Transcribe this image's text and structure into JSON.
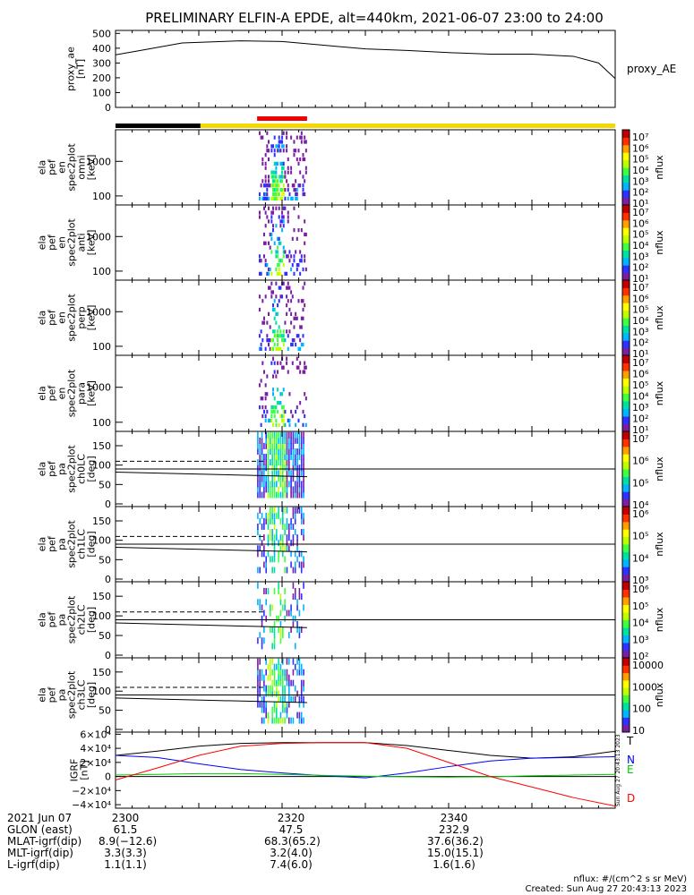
{
  "title": "PRELIMINARY ELFIN-A EPDE, alt=440km, 2021-06-07 23:00 to 24:00",
  "chart_data": [
    {
      "type": "line",
      "panel": "ae",
      "ylabel_lines": [
        "proxy_ae",
        "[nT]"
      ],
      "yticks": [
        "500",
        "400",
        "300",
        "200",
        "100",
        "0"
      ],
      "ytick_values": [
        500,
        400,
        300,
        200,
        100,
        0
      ],
      "ylim": [
        0,
        520
      ],
      "series": [
        {
          "name": "proxy_AE",
          "x": [
            0,
            3,
            8,
            15,
            20,
            25,
            30,
            35,
            40,
            45,
            50,
            55,
            58,
            60
          ],
          "values": [
            355,
            385,
            435,
            450,
            445,
            420,
            395,
            385,
            370,
            360,
            360,
            345,
            300,
            195
          ]
        }
      ]
    },
    {
      "type": "heatmap",
      "panel": "en_omni",
      "ylabel_lines": [
        "ela",
        "pef",
        "en",
        "spec2plot",
        "omni",
        "[keV]"
      ],
      "yticks": [
        "1000",
        "100"
      ],
      "colorbar_label": "nflux",
      "colorbar_ticks": [
        "10⁷",
        "10⁶",
        "10⁵",
        "10⁴",
        "10³",
        "10²",
        "10¹"
      ]
    },
    {
      "type": "heatmap",
      "panel": "en_anti",
      "ylabel_lines": [
        "ela",
        "pef",
        "en",
        "spec2plot",
        "anti",
        "[keV]"
      ],
      "yticks": [
        "1000",
        "100"
      ],
      "colorbar_label": "nflux",
      "colorbar_ticks": [
        "10⁷",
        "10⁶",
        "10⁵",
        "10⁴",
        "10³",
        "10²",
        "10¹"
      ]
    },
    {
      "type": "heatmap",
      "panel": "en_perp",
      "ylabel_lines": [
        "ela",
        "pef",
        "en",
        "spec2plot",
        "perp",
        "[keV]"
      ],
      "yticks": [
        "1000",
        "100"
      ],
      "colorbar_label": "nflux",
      "colorbar_ticks": [
        "10⁷",
        "10⁶",
        "10⁵",
        "10⁴",
        "10³",
        "10²",
        "10¹"
      ]
    },
    {
      "type": "heatmap",
      "panel": "en_para",
      "ylabel_lines": [
        "ela",
        "pef",
        "en",
        "spec2plot",
        "para",
        "[keV]"
      ],
      "yticks": [
        "1000",
        "100"
      ],
      "colorbar_label": "nflux",
      "colorbar_ticks": [
        "10⁷",
        "10⁶",
        "10⁵",
        "10⁴",
        "10³",
        "10²",
        "10¹"
      ]
    },
    {
      "type": "heatmap",
      "panel": "pa_ch0",
      "ylabel_lines": [
        "ela",
        "pef",
        "pa",
        "spec2plot",
        "ch0LC",
        "[deg]"
      ],
      "yticks": [
        "150",
        "100",
        "50",
        "0"
      ],
      "colorbar_label": "nflux",
      "colorbar_ticks": [
        "10⁷",
        "10⁶",
        "10⁵",
        "10⁴"
      ]
    },
    {
      "type": "heatmap",
      "panel": "pa_ch1",
      "ylabel_lines": [
        "ela",
        "pef",
        "pa",
        "spec2plot",
        "ch1LC",
        "[deg]"
      ],
      "yticks": [
        "150",
        "100",
        "50",
        "0"
      ],
      "colorbar_label": "nflux",
      "colorbar_ticks": [
        "10⁶",
        "10⁵",
        "10⁴",
        "10³"
      ]
    },
    {
      "type": "heatmap",
      "panel": "pa_ch2",
      "ylabel_lines": [
        "ela",
        "pef",
        "pa",
        "spec2plot",
        "ch2LC",
        "[deg]"
      ],
      "yticks": [
        "150",
        "100",
        "50",
        "0"
      ],
      "colorbar_label": "nflux",
      "colorbar_ticks": [
        "10⁶",
        "10⁵",
        "10⁴",
        "10³",
        "10²"
      ]
    },
    {
      "type": "heatmap",
      "panel": "pa_ch3",
      "ylabel_lines": [
        "ela",
        "pef",
        "pa",
        "spec2plot",
        "ch3LC",
        "[deg]"
      ],
      "yticks": [
        "150",
        "100",
        "50",
        "0"
      ],
      "colorbar_label": "nflux",
      "colorbar_ticks": [
        "10000",
        "1000",
        "100",
        "10"
      ]
    },
    {
      "type": "line",
      "panel": "igrf",
      "ylabel_lines": [
        "IGRF",
        "[nT]"
      ],
      "yticks": [
        "6×10⁴",
        "4×10⁴",
        "2×10⁴",
        "0",
        "−2×10⁴",
        "−4×10⁴"
      ],
      "ytick_values": [
        60000,
        40000,
        20000,
        0,
        -20000,
        -40000
      ],
      "ylim": [
        -45000,
        63000
      ],
      "series": [
        {
          "name": "T",
          "color": "#000000",
          "x": [
            0,
            5,
            10,
            15,
            20,
            25,
            30,
            35,
            40,
            45,
            50,
            55,
            60
          ],
          "values": [
            30000,
            36000,
            43000,
            47000,
            48000,
            48000,
            48000,
            44000,
            37000,
            30000,
            26000,
            28000,
            36000
          ]
        },
        {
          "name": "N",
          "color": "#0000ff",
          "x": [
            0,
            5,
            10,
            15,
            20,
            25,
            30,
            35,
            40,
            45,
            50,
            55,
            60
          ],
          "values": [
            30000,
            27000,
            18000,
            10000,
            5000,
            1000,
            -2000,
            5000,
            14000,
            22000,
            26000,
            27000,
            28000
          ]
        },
        {
          "name": "E",
          "color": "#00cc00",
          "x": [
            0,
            5,
            10,
            15,
            20,
            25,
            30,
            35,
            40,
            45,
            50,
            55,
            60
          ],
          "values": [
            2000,
            3000,
            4000,
            4000,
            3000,
            1500,
            500,
            -500,
            -1000,
            -500,
            1000,
            2000,
            3000
          ]
        },
        {
          "name": "D",
          "color": "#ff0000",
          "x": [
            0,
            5,
            10,
            15,
            20,
            25,
            30,
            35,
            40,
            45,
            50,
            55,
            60
          ],
          "values": [
            -5000,
            12000,
            30000,
            43000,
            47000,
            48000,
            48000,
            40000,
            20000,
            0,
            -15000,
            -30000,
            -42000
          ]
        }
      ]
    }
  ],
  "xaxis": {
    "ticks": [
      "2300",
      "2320",
      "2340"
    ]
  },
  "footer_rows": [
    {
      "label": "2021 Jun 07",
      "values": [
        "2300",
        "2320",
        "2340"
      ]
    },
    {
      "label": "GLON (east)",
      "values": [
        "61.5",
        "47.5",
        "232.9"
      ]
    },
    {
      "label": "MLAT-igrf(dip)",
      "values": [
        "8.9(−12.6)",
        "68.3(65.2)",
        "37.6(36.2)"
      ]
    },
    {
      "label": "MLT-igrf(dip)",
      "values": [
        "3.3(3.3)",
        "3.2(4.0)",
        "15.0(15.1)"
      ]
    },
    {
      "label": "L-igrf(dip)",
      "values": [
        "1.1(1.1)",
        "7.4(6.0)",
        "1.6(1.6)"
      ]
    }
  ],
  "units_note": "nflux: #/(cm^2 s sr MeV)",
  "created": "Created: Sun Aug 27 20:43:13 2023",
  "side_stamp": "Sun Aug 27 20:43:13 2023",
  "colors": {
    "black_bar": "#000000",
    "yellow_bar": "#f5d800",
    "red_marker": "#ee0000",
    "spectrum": [
      "#7b1fa2",
      "#3030ff",
      "#00b4ff",
      "#00e0a0",
      "#40ff40",
      "#c0ff00",
      "#ffff00",
      "#ffa000",
      "#ff3000",
      "#c00000"
    ]
  }
}
